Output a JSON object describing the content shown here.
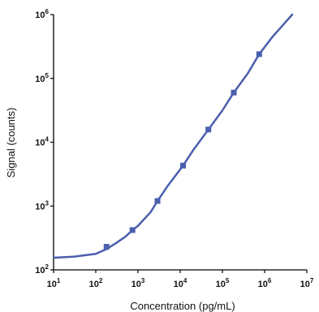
{
  "chart_data": {
    "type": "scatter",
    "xscale": "log",
    "yscale": "log",
    "xlim": [
      10,
      10000000
    ],
    "ylim": [
      100,
      1000000
    ],
    "xlabel": "Concentration (pg/mL)",
    "ylabel": "Signal (counts)",
    "title": "",
    "grid": false,
    "legend": "none",
    "x_tick_labels": [
      {
        "base": "10",
        "exp": "1"
      },
      {
        "base": "10",
        "exp": "2"
      },
      {
        "base": "10",
        "exp": "3"
      },
      {
        "base": "10",
        "exp": "4"
      },
      {
        "base": "10",
        "exp": "5"
      },
      {
        "base": "10",
        "exp": "6"
      },
      {
        "base": "10",
        "exp": "7"
      }
    ],
    "y_tick_labels": [
      {
        "base": "10",
        "exp": "2"
      },
      {
        "base": "10",
        "exp": "3"
      },
      {
        "base": "10",
        "exp": "4"
      },
      {
        "base": "10",
        "exp": "5"
      },
      {
        "base": "10",
        "exp": "6"
      }
    ],
    "series": [
      {
        "points": [
          {
            "x": 180,
            "y": 230
          },
          {
            "x": 740,
            "y": 420
          },
          {
            "x": 2900,
            "y": 1200
          },
          {
            "x": 11700,
            "y": 4300
          },
          {
            "x": 46500,
            "y": 15800
          },
          {
            "x": 186000,
            "y": 60000
          },
          {
            "x": 745000,
            "y": 240000
          }
        ],
        "fit_curve": {
          "x": [
            10,
            30,
            100,
            180,
            300,
            500,
            740,
            1000,
            2000,
            2900,
            5000,
            11700,
            20000,
            46500,
            100000,
            186000,
            400000,
            745000,
            1500000,
            2800000,
            4500000
          ],
          "y": [
            155,
            161,
            178,
            212,
            262,
            330,
            420,
            490,
            805,
            1200,
            2050,
            4300,
            7400,
            15800,
            31500,
            60000,
            120000,
            240000,
            440000,
            700000,
            1000000
          ]
        },
        "color": "#4a5fae",
        "marker": "square"
      }
    ]
  }
}
